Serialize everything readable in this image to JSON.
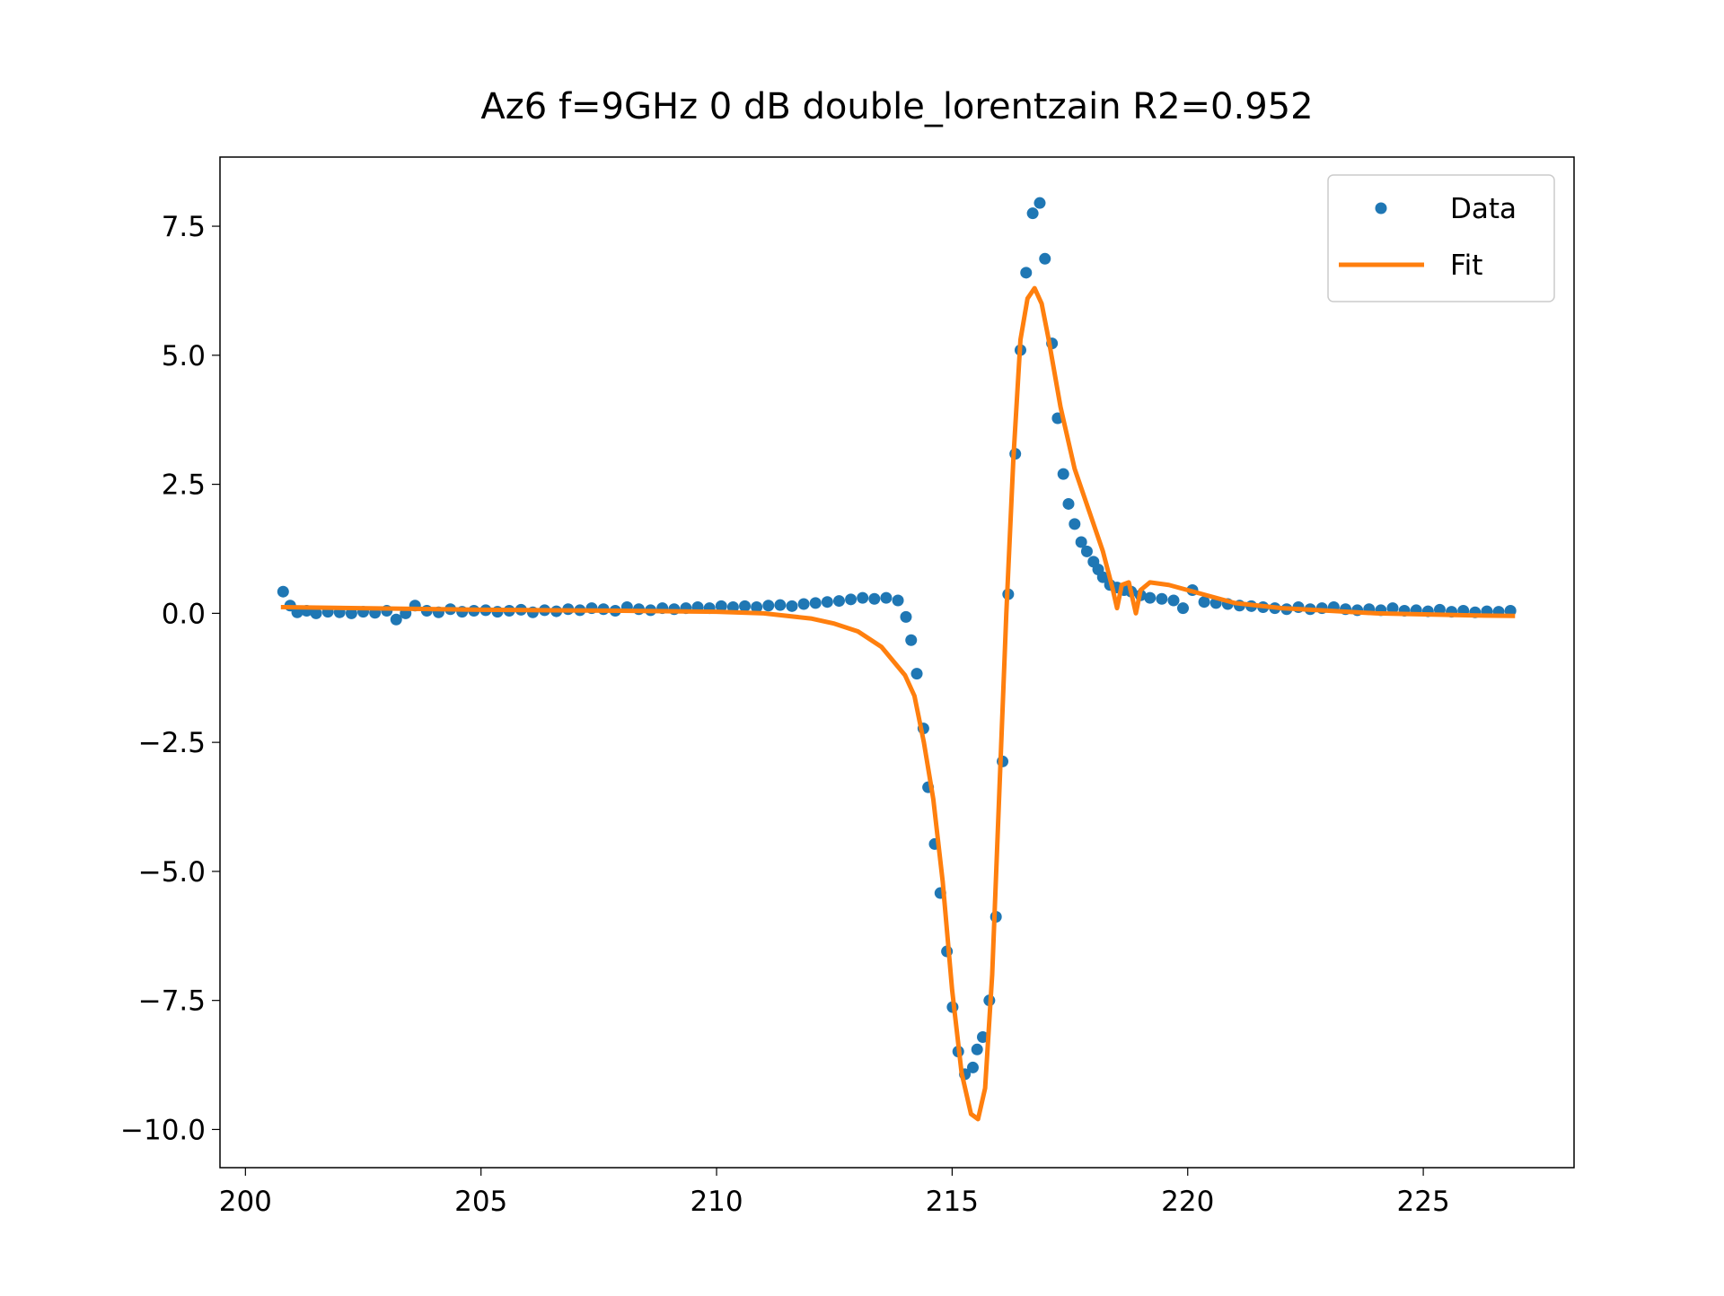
{
  "chart_data": {
    "type": "line",
    "title": "Az6 f=9GHz 0 dB double_lorentzain R2=0.952",
    "xlim": [
      199.46,
      228.2
    ],
    "ylim": [
      -10.74,
      8.84
    ],
    "xticks": [
      200,
      205,
      210,
      215,
      220,
      225
    ],
    "yticks": [
      {
        "value": -10,
        "label": "−10.0"
      },
      {
        "value": -7.5,
        "label": "−7.5"
      },
      {
        "value": -5,
        "label": "−5.0"
      },
      {
        "value": -2.5,
        "label": "−2.5"
      },
      {
        "value": 0,
        "label": "0.0"
      },
      {
        "value": 2.5,
        "label": "2.5"
      },
      {
        "value": 5,
        "label": "5.0"
      },
      {
        "value": 7.5,
        "label": "7.5"
      }
    ],
    "grid": false,
    "legend": "upper right",
    "series": [
      {
        "name": "Data",
        "color": "#1f77b4",
        "mode": "markers",
        "x": [
          200.8,
          200.95,
          201.1,
          201.3,
          201.5,
          201.75,
          202.0,
          202.25,
          202.5,
          202.75,
          203.0,
          203.2,
          203.4,
          203.6,
          203.85,
          204.1,
          204.35,
          204.6,
          204.85,
          205.1,
          205.35,
          205.6,
          205.85,
          206.1,
          206.35,
          206.6,
          206.85,
          207.1,
          207.35,
          207.6,
          207.85,
          208.1,
          208.35,
          208.6,
          208.85,
          209.1,
          209.35,
          209.6,
          209.85,
          210.1,
          210.35,
          210.6,
          210.85,
          211.1,
          211.35,
          211.6,
          211.85,
          212.1,
          212.35,
          212.6,
          212.85,
          213.1,
          213.35,
          213.6,
          213.85,
          214.02,
          214.13,
          214.25,
          214.39,
          214.49,
          214.63,
          214.75,
          214.89,
          215.01,
          215.13,
          215.27,
          215.44,
          215.53,
          215.65,
          215.79,
          215.93,
          216.07,
          216.19,
          216.34,
          216.45,
          216.57,
          216.71,
          216.86,
          216.97,
          217.12,
          217.24,
          217.36,
          217.47,
          217.6,
          217.74,
          217.86,
          218.0,
          218.1,
          218.2,
          218.35,
          218.5,
          218.65,
          218.8,
          219.0,
          219.2,
          219.45,
          219.7,
          219.9,
          220.1,
          220.35,
          220.6,
          220.85,
          221.1,
          221.35,
          221.6,
          221.85,
          222.1,
          222.35,
          222.6,
          222.85,
          223.1,
          223.35,
          223.6,
          223.85,
          224.1,
          224.35,
          224.6,
          224.85,
          225.1,
          225.35,
          225.6,
          225.85,
          226.1,
          226.35,
          226.6,
          226.85
        ],
        "values": [
          0.42,
          0.15,
          0.02,
          0.05,
          0.0,
          0.03,
          0.02,
          0.0,
          0.03,
          0.01,
          0.05,
          -0.12,
          0.0,
          0.15,
          0.05,
          0.02,
          0.08,
          0.03,
          0.05,
          0.06,
          0.03,
          0.05,
          0.07,
          0.02,
          0.06,
          0.04,
          0.08,
          0.06,
          0.1,
          0.08,
          0.05,
          0.12,
          0.08,
          0.06,
          0.1,
          0.08,
          0.1,
          0.12,
          0.1,
          0.14,
          0.12,
          0.14,
          0.12,
          0.15,
          0.16,
          0.14,
          0.18,
          0.2,
          0.22,
          0.24,
          0.27,
          0.3,
          0.28,
          0.3,
          0.25,
          -0.07,
          -0.52,
          -1.17,
          -2.23,
          -3.37,
          -4.47,
          -5.42,
          -6.55,
          -7.63,
          -8.49,
          -8.93,
          -8.8,
          -8.45,
          -8.21,
          -7.5,
          -5.88,
          -2.87,
          0.37,
          3.09,
          5.1,
          6.6,
          7.75,
          7.95,
          6.87,
          5.23,
          3.78,
          2.7,
          2.12,
          1.73,
          1.38,
          1.2,
          1.0,
          0.85,
          0.7,
          0.55,
          0.5,
          0.45,
          0.42,
          0.35,
          0.3,
          0.28,
          0.25,
          0.1,
          0.45,
          0.22,
          0.2,
          0.18,
          0.15,
          0.14,
          0.12,
          0.1,
          0.08,
          0.12,
          0.08,
          0.1,
          0.12,
          0.08,
          0.06,
          0.08,
          0.06,
          0.1,
          0.05,
          0.06,
          0.04,
          0.07,
          0.03,
          0.05,
          0.02,
          0.04,
          0.03,
          0.05
        ]
      },
      {
        "name": "Fit",
        "color": "#ff7f0e",
        "mode": "line",
        "x": [
          200.8,
          205,
          208,
          210,
          211,
          212,
          212.5,
          213,
          213.5,
          214,
          214.2,
          214.4,
          214.6,
          214.8,
          215.0,
          215.2,
          215.4,
          215.55,
          215.7,
          215.85,
          216.0,
          216.15,
          216.3,
          216.45,
          216.6,
          216.75,
          216.9,
          217.05,
          217.3,
          217.6,
          217.9,
          218.2,
          218.4,
          218.5,
          218.6,
          218.75,
          218.9,
          219.0,
          219.2,
          219.6,
          220,
          221,
          222,
          223,
          224,
          225,
          226,
          226.9
        ],
        "values": [
          0.12,
          0.07,
          0.05,
          0.03,
          0.0,
          -0.1,
          -0.2,
          -0.35,
          -0.65,
          -1.2,
          -1.6,
          -2.5,
          -3.6,
          -5.2,
          -7.3,
          -8.9,
          -9.7,
          -9.8,
          -9.2,
          -7.0,
          -3.5,
          0.0,
          3.0,
          5.3,
          6.1,
          6.3,
          6.0,
          5.3,
          4.0,
          2.8,
          2.0,
          1.2,
          0.5,
          0.1,
          0.55,
          0.6,
          0.0,
          0.45,
          0.6,
          0.55,
          0.45,
          0.2,
          0.1,
          0.05,
          0.0,
          -0.02,
          -0.04,
          -0.05
        ]
      }
    ]
  }
}
